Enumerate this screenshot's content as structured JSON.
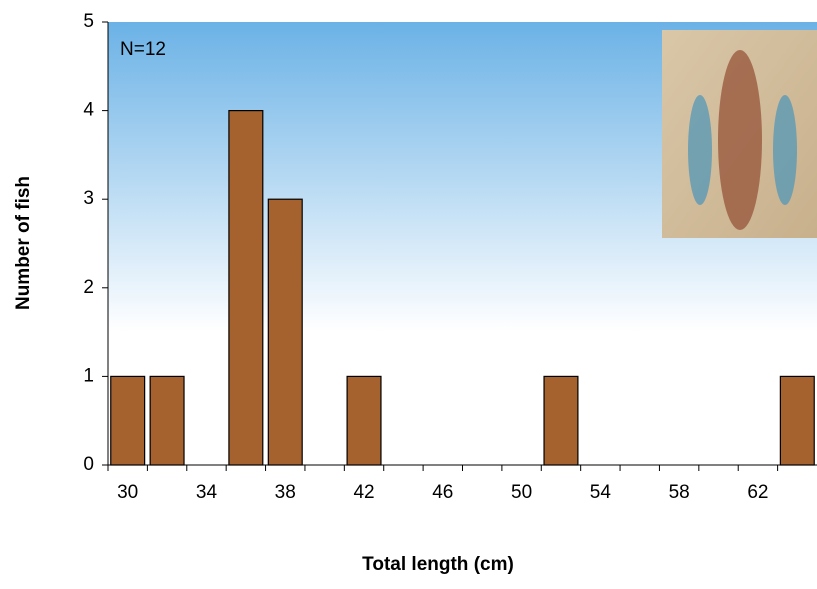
{
  "chart_data": {
    "type": "bar",
    "annotation": "N=12",
    "xlabel": "Total length (cm)",
    "ylabel": "Number of fish",
    "categories": [
      "30",
      null,
      "34",
      null,
      "38",
      null,
      "42",
      null,
      "46",
      null,
      "50",
      null,
      "54",
      null,
      "58",
      null,
      "62",
      null
    ],
    "values": [
      1,
      1,
      0,
      4,
      3,
      0,
      1,
      0,
      0,
      0,
      0,
      1,
      0,
      0,
      0,
      0,
      0,
      1
    ],
    "color": "#a5612e",
    "ylim": [
      0,
      5
    ],
    "yticks": [
      0,
      1,
      2,
      3,
      4,
      5
    ]
  }
}
